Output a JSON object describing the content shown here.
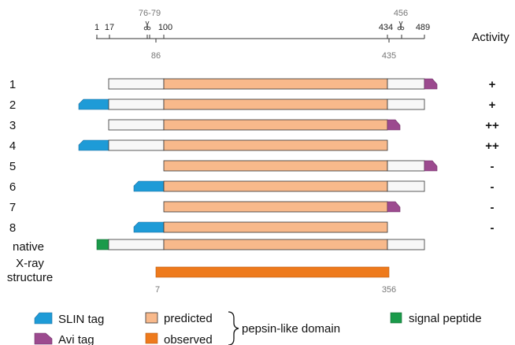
{
  "scale": {
    "ticks_top": [
      "1",
      "17",
      "100",
      "434",
      "489"
    ],
    "ticks_top_gray": [
      "76-79",
      "456"
    ],
    "ticks_bottom_gray": [
      "86",
      "435"
    ],
    "activity_header": "Activity"
  },
  "constructs": [
    {
      "label": "1",
      "activity": "+",
      "segments": [
        "white",
        "orange",
        "white",
        "avi"
      ]
    },
    {
      "label": "2",
      "activity": "+",
      "segments": [
        "slin",
        "white",
        "orange",
        "white"
      ]
    },
    {
      "label": "3",
      "activity": "++",
      "segments": [
        "white",
        "orange",
        "avi"
      ]
    },
    {
      "label": "4",
      "activity": "++",
      "segments": [
        "slin",
        "white",
        "orange"
      ]
    },
    {
      "label": "5",
      "activity": "-",
      "segments": [
        "orange",
        "white",
        "avi"
      ]
    },
    {
      "label": "6",
      "activity": "-",
      "segments": [
        "slin",
        "orange",
        "white"
      ]
    },
    {
      "label": "7",
      "activity": "-",
      "segments": [
        "orange",
        "avi"
      ]
    },
    {
      "label": "8",
      "activity": "-",
      "segments": [
        "slin",
        "orange"
      ]
    },
    {
      "label": "native",
      "activity": "",
      "segments": [
        "signal",
        "white",
        "orange",
        "white"
      ]
    }
  ],
  "xray": {
    "label_line1": "X-ray",
    "label_line2": "structure",
    "start": "7",
    "end": "356"
  },
  "legend": {
    "slin": "SLIN tag",
    "avi": "Avi tag",
    "predicted": "predicted",
    "observed": "observed",
    "domain": "pepsin-like domain",
    "signal": "signal peptide"
  },
  "colors": {
    "slin": "#1e9bd7",
    "avi": "#9c4a8f",
    "predicted": "#f8b98b",
    "observed": "#ee7a1c",
    "signal": "#1a9a4a",
    "unstructured": "#f7f7f7"
  }
}
